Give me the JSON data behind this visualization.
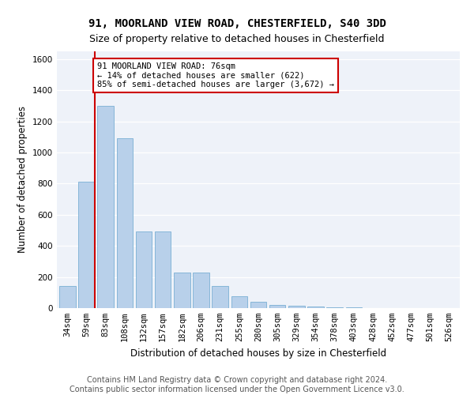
{
  "title1": "91, MOORLAND VIEW ROAD, CHESTERFIELD, S40 3DD",
  "title2": "Size of property relative to detached houses in Chesterfield",
  "xlabel": "Distribution of detached houses by size in Chesterfield",
  "ylabel": "Number of detached properties",
  "categories": [
    "34sqm",
    "59sqm",
    "83sqm",
    "108sqm",
    "132sqm",
    "157sqm",
    "182sqm",
    "206sqm",
    "231sqm",
    "255sqm",
    "280sqm",
    "305sqm",
    "329sqm",
    "354sqm",
    "378sqm",
    "403sqm",
    "428sqm",
    "452sqm",
    "477sqm",
    "501sqm",
    "526sqm"
  ],
  "values": [
    140,
    810,
    1300,
    1090,
    490,
    490,
    230,
    230,
    140,
    75,
    40,
    20,
    15,
    8,
    5,
    3,
    2,
    1,
    1,
    1,
    1
  ],
  "bar_color": "#b8d0ea",
  "bar_edge_color": "#7aafd4",
  "vline_color": "#cc0000",
  "vline_x": 1.42,
  "annotation_text": "91 MOORLAND VIEW ROAD: 76sqm\n← 14% of detached houses are smaller (622)\n85% of semi-detached houses are larger (3,672) →",
  "annotation_box_facecolor": "#ffffff",
  "annotation_box_edgecolor": "#cc0000",
  "ylim": [
    0,
    1650
  ],
  "yticks": [
    0,
    200,
    400,
    600,
    800,
    1000,
    1200,
    1400,
    1600
  ],
  "background_color": "#eef2f9",
  "footer1": "Contains HM Land Registry data © Crown copyright and database right 2024.",
  "footer2": "Contains public sector information licensed under the Open Government Licence v3.0.",
  "title_fontsize": 10,
  "subtitle_fontsize": 9,
  "axis_label_fontsize": 8.5,
  "tick_fontsize": 7.5,
  "footer_fontsize": 7,
  "annotation_fontsize": 7.5
}
